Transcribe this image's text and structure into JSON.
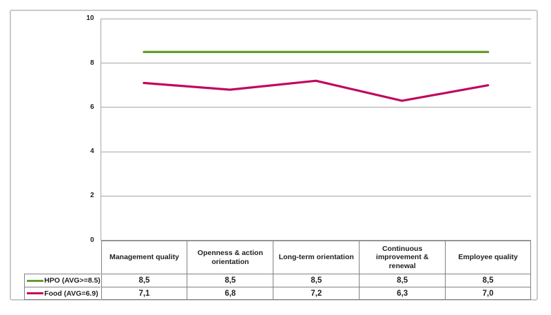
{
  "chart_data": {
    "type": "line",
    "categories": [
      "Management quality",
      "Openness & action orientation",
      "Long-term orientation",
      "Continuous improvement & renewal",
      "Employee quality"
    ],
    "series": [
      {
        "name": "HPO (AVG>=8.5)",
        "values": [
          8.5,
          8.5,
          8.5,
          8.5,
          8.5
        ],
        "display_values": [
          "8,5",
          "8,5",
          "8,5",
          "8,5",
          "8,5"
        ],
        "color": "#669c28"
      },
      {
        "name": "Food (AVG=6.9)",
        "values": [
          7.1,
          6.8,
          7.2,
          6.3,
          7.0
        ],
        "display_values": [
          "7,1",
          "6,8",
          "7,2",
          "6,3",
          "7,0"
        ],
        "color": "#c0075e"
      }
    ],
    "title": "",
    "xlabel": "",
    "ylabel": "",
    "ylim": [
      0,
      10
    ],
    "yticks": [
      0,
      2,
      4,
      6,
      8,
      10
    ],
    "grid": "horizontal",
    "legend_position": "data-table-left",
    "colors": {
      "gridline": "#a6a6a6",
      "axis": "#a6a6a6",
      "table_border": "#808080",
      "frame_border": "#c9c9c9",
      "text": "#1f1f1f",
      "background": "#ffffff"
    }
  }
}
